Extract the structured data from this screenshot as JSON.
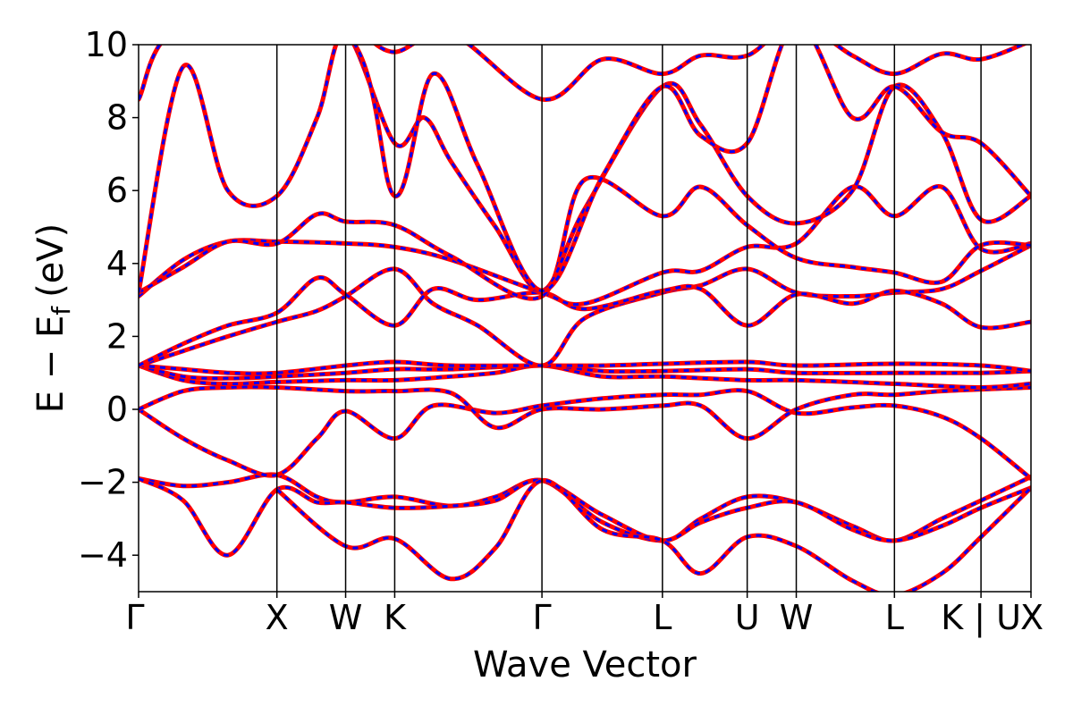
{
  "chart_data": {
    "type": "line",
    "title": "",
    "xlabel": "Wave Vector",
    "ylabel": "E − E",
    "ylabel_sub": "f",
    "ylabel_unit": "(eV)",
    "ylim": [
      -5,
      10
    ],
    "xlim": [
      0,
      1
    ],
    "yticks": [
      -4,
      -2,
      0,
      2,
      4,
      6,
      8,
      10
    ],
    "ytick_labels": [
      "−4",
      "−2",
      "0",
      "2",
      "4",
      "6",
      "8",
      "10"
    ],
    "kpoints": [
      {
        "label": "Γ",
        "x": 0.0
      },
      {
        "label": "X",
        "x": 0.155
      },
      {
        "label": "W",
        "x": 0.232
      },
      {
        "label": "K",
        "x": 0.287
      },
      {
        "label": "Γ",
        "x": 0.452
      },
      {
        "label": "L",
        "x": 0.587
      },
      {
        "label": "U",
        "x": 0.682
      },
      {
        "label": "W",
        "x": 0.737
      },
      {
        "label": "L",
        "x": 0.847
      },
      {
        "label": "K | U",
        "x": 0.944
      },
      {
        "label": "X",
        "x": 1.0
      }
    ],
    "series_colors": {
      "primary": "#ff0000",
      "secondary": "#0000ff"
    },
    "bands": [
      [
        [
          0,
          -1.9
        ],
        [
          0.05,
          -2.1
        ],
        [
          0.1,
          -2.0
        ],
        [
          0.155,
          -1.8
        ],
        [
          0.2,
          -2.4
        ],
        [
          0.232,
          -2.55
        ],
        [
          0.287,
          -2.4
        ],
        [
          0.35,
          -2.65
        ],
        [
          0.4,
          -2.4
        ],
        [
          0.452,
          -1.95
        ],
        [
          0.52,
          -2.9
        ],
        [
          0.587,
          -3.6
        ],
        [
          0.63,
          -3.0
        ],
        [
          0.682,
          -2.4
        ],
        [
          0.737,
          -2.55
        ],
        [
          0.8,
          -3.2
        ],
        [
          0.847,
          -3.6
        ],
        [
          0.9,
          -3.0
        ],
        [
          0.944,
          -2.5
        ],
        [
          1.0,
          -1.85
        ]
      ],
      [
        [
          0,
          -1.9
        ],
        [
          0.05,
          -2.5
        ],
        [
          0.1,
          -4.0
        ],
        [
          0.155,
          -2.2
        ],
        [
          0.2,
          -2.55
        ],
        [
          0.232,
          -2.55
        ],
        [
          0.287,
          -2.7
        ],
        [
          0.35,
          -2.65
        ],
        [
          0.4,
          -2.5
        ],
        [
          0.452,
          -1.95
        ],
        [
          0.52,
          -3.1
        ],
        [
          0.587,
          -3.6
        ],
        [
          0.63,
          -3.1
        ],
        [
          0.682,
          -2.7
        ],
        [
          0.737,
          -2.55
        ],
        [
          0.8,
          -3.3
        ],
        [
          0.847,
          -3.6
        ],
        [
          0.9,
          -3.2
        ],
        [
          0.944,
          -2.7
        ],
        [
          1.0,
          -2.15
        ]
      ],
      [
        [
          0.155,
          -2.2
        ],
        [
          0.232,
          -3.75
        ],
        [
          0.287,
          -3.55
        ],
        [
          0.35,
          -4.65
        ],
        [
          0.4,
          -3.8
        ],
        [
          0.452,
          -1.95
        ],
        [
          0.52,
          -3.3
        ],
        [
          0.587,
          -3.6
        ],
        [
          0.63,
          -4.5
        ],
        [
          0.682,
          -3.5
        ],
        [
          0.737,
          -3.75
        ],
        [
          0.8,
          -4.7
        ],
        [
          0.847,
          -5.1
        ],
        [
          0.9,
          -4.5
        ],
        [
          0.944,
          -3.5
        ],
        [
          1.0,
          -2.15
        ]
      ],
      [
        [
          0,
          0.0
        ],
        [
          0.05,
          -0.8
        ],
        [
          0.1,
          -1.4
        ],
        [
          0.155,
          -1.8
        ],
        [
          0.2,
          -0.8
        ],
        [
          0.232,
          -0.05
        ],
        [
          0.287,
          -0.8
        ],
        [
          0.33,
          0.1
        ],
        [
          0.4,
          -0.1
        ],
        [
          0.452,
          0.1
        ],
        [
          0.52,
          0.3
        ],
        [
          0.587,
          0.4
        ],
        [
          0.63,
          0.4
        ],
        [
          0.682,
          0.5
        ],
        [
          0.737,
          -0.1
        ],
        [
          0.8,
          0.05
        ],
        [
          0.847,
          0.1
        ],
        [
          0.9,
          -0.2
        ],
        [
          0.944,
          -0.8
        ],
        [
          1.0,
          -1.9
        ]
      ],
      [
        [
          0,
          0.0
        ],
        [
          0.05,
          0.5
        ],
        [
          0.1,
          0.6
        ],
        [
          0.155,
          0.6
        ],
        [
          0.232,
          0.5
        ],
        [
          0.287,
          0.5
        ],
        [
          0.35,
          0.45
        ],
        [
          0.4,
          -0.5
        ],
        [
          0.452,
          0.0
        ],
        [
          0.52,
          0.0
        ],
        [
          0.587,
          0.1
        ],
        [
          0.63,
          0.1
        ],
        [
          0.682,
          -0.8
        ],
        [
          0.737,
          0.0
        ],
        [
          0.8,
          0.4
        ],
        [
          0.847,
          0.4
        ],
        [
          0.9,
          0.5
        ],
        [
          1.0,
          0.6
        ]
      ],
      [
        [
          0,
          1.2
        ],
        [
          0.05,
          0.8
        ],
        [
          0.1,
          0.7
        ],
        [
          0.155,
          0.75
        ],
        [
          0.232,
          0.8
        ],
        [
          0.287,
          0.8
        ],
        [
          0.35,
          0.9
        ],
        [
          0.4,
          1.0
        ],
        [
          0.452,
          1.2
        ],
        [
          0.52,
          0.9
        ],
        [
          0.587,
          0.9
        ],
        [
          0.682,
          0.8
        ],
        [
          0.737,
          0.8
        ],
        [
          0.847,
          0.7
        ],
        [
          0.944,
          0.6
        ],
        [
          1.0,
          0.7
        ]
      ],
      [
        [
          0,
          1.2
        ],
        [
          0.05,
          0.9
        ],
        [
          0.1,
          0.85
        ],
        [
          0.155,
          0.9
        ],
        [
          0.232,
          1.0
        ],
        [
          0.287,
          1.1
        ],
        [
          0.35,
          1.1
        ],
        [
          0.452,
          1.2
        ],
        [
          0.52,
          1.05
        ],
        [
          0.587,
          1.05
        ],
        [
          0.682,
          1.1
        ],
        [
          0.737,
          1.0
        ],
        [
          0.847,
          1.0
        ],
        [
          0.944,
          1.0
        ],
        [
          1.0,
          1.05
        ]
      ],
      [
        [
          0,
          1.2
        ],
        [
          0.05,
          1.1
        ],
        [
          0.1,
          1.0
        ],
        [
          0.155,
          1.0
        ],
        [
          0.232,
          1.2
        ],
        [
          0.287,
          1.3
        ],
        [
          0.35,
          1.2
        ],
        [
          0.452,
          1.2
        ],
        [
          0.52,
          1.2
        ],
        [
          0.587,
          1.25
        ],
        [
          0.682,
          1.3
        ],
        [
          0.737,
          1.2
        ],
        [
          0.847,
          1.25
        ],
        [
          0.944,
          1.2
        ],
        [
          1.0,
          1.05
        ]
      ],
      [
        [
          0,
          1.2
        ],
        [
          0.05,
          1.6
        ],
        [
          0.1,
          2.0
        ],
        [
          0.155,
          2.4
        ],
        [
          0.2,
          2.7
        ],
        [
          0.232,
          3.1
        ],
        [
          0.287,
          3.85
        ],
        [
          0.33,
          2.9
        ],
        [
          0.38,
          2.3
        ],
        [
          0.452,
          1.2
        ],
        [
          0.5,
          2.5
        ],
        [
          0.587,
          3.2
        ],
        [
          0.63,
          3.4
        ],
        [
          0.682,
          3.85
        ],
        [
          0.737,
          3.2
        ],
        [
          0.8,
          3.1
        ],
        [
          0.847,
          3.2
        ],
        [
          0.9,
          3.3
        ],
        [
          0.944,
          3.8
        ],
        [
          1.0,
          4.5
        ]
      ],
      [
        [
          0,
          1.2
        ],
        [
          0.05,
          1.8
        ],
        [
          0.1,
          2.3
        ],
        [
          0.155,
          2.65
        ],
        [
          0.2,
          3.6
        ],
        [
          0.232,
          3.15
        ],
        [
          0.287,
          2.3
        ],
        [
          0.33,
          3.3
        ],
        [
          0.38,
          3.0
        ],
        [
          0.452,
          3.2
        ],
        [
          0.5,
          2.75
        ],
        [
          0.587,
          3.25
        ],
        [
          0.63,
          3.3
        ],
        [
          0.682,
          2.3
        ],
        [
          0.737,
          3.15
        ],
        [
          0.8,
          2.9
        ],
        [
          0.847,
          3.25
        ],
        [
          0.9,
          2.9
        ],
        [
          0.944,
          2.25
        ],
        [
          1.0,
          2.4
        ]
      ],
      [
        [
          0,
          3.1
        ],
        [
          0.05,
          4.1
        ],
        [
          0.1,
          4.6
        ],
        [
          0.155,
          4.6
        ],
        [
          0.232,
          4.55
        ],
        [
          0.287,
          4.45
        ],
        [
          0.35,
          4.1
        ],
        [
          0.452,
          3.2
        ],
        [
          0.5,
          2.9
        ],
        [
          0.587,
          3.75
        ],
        [
          0.63,
          3.8
        ],
        [
          0.682,
          4.45
        ],
        [
          0.737,
          4.55
        ],
        [
          0.8,
          6.1
        ],
        [
          0.847,
          5.3
        ],
        [
          0.9,
          6.1
        ],
        [
          0.944,
          4.4
        ],
        [
          1.0,
          4.55
        ]
      ],
      [
        [
          0,
          3.2
        ],
        [
          0.05,
          3.9
        ],
        [
          0.1,
          4.6
        ],
        [
          0.155,
          4.55
        ],
        [
          0.2,
          5.35
        ],
        [
          0.232,
          5.15
        ],
        [
          0.287,
          5.05
        ],
        [
          0.35,
          4.2
        ],
        [
          0.452,
          3.1
        ],
        [
          0.5,
          6.3
        ],
        [
          0.587,
          5.3
        ],
        [
          0.63,
          6.1
        ],
        [
          0.682,
          5.05
        ],
        [
          0.737,
          4.15
        ],
        [
          0.8,
          3.9
        ],
        [
          0.847,
          3.75
        ],
        [
          0.9,
          3.5
        ],
        [
          0.944,
          4.5
        ],
        [
          1.0,
          4.5
        ]
      ],
      [
        [
          0,
          3.2
        ],
        [
          0.05,
          9.4
        ],
        [
          0.1,
          6.0
        ],
        [
          0.155,
          5.85
        ],
        [
          0.2,
          8.0
        ],
        [
          0.232,
          10.3
        ],
        [
          0.287,
          7.3
        ],
        [
          0.32,
          8.0
        ],
        [
          0.35,
          6.8
        ],
        [
          0.4,
          5.0
        ],
        [
          0.452,
          3.25
        ],
        [
          0.5,
          5.5
        ],
        [
          0.587,
          8.85
        ],
        [
          0.63,
          7.8
        ],
        [
          0.682,
          5.85
        ],
        [
          0.737,
          5.1
        ],
        [
          0.8,
          6.0
        ],
        [
          0.847,
          8.85
        ],
        [
          0.9,
          7.6
        ],
        [
          0.944,
          5.2
        ],
        [
          1.0,
          5.85
        ]
      ],
      [
        [
          0,
          8.5
        ],
        [
          0.05,
          10.5
        ],
        [
          0.232,
          10.3
        ],
        [
          0.287,
          5.85
        ],
        [
          0.33,
          9.2
        ],
        [
          0.38,
          6.7
        ],
        [
          0.452,
          3.25
        ],
        [
          0.52,
          6.4
        ],
        [
          0.587,
          8.85
        ],
        [
          0.63,
          7.5
        ],
        [
          0.682,
          7.3
        ],
        [
          0.737,
          10.6
        ],
        [
          0.8,
          8.0
        ],
        [
          0.847,
          8.85
        ],
        [
          0.9,
          7.6
        ],
        [
          0.944,
          7.3
        ],
        [
          1.0,
          5.85
        ]
      ],
      [
        [
          0.252,
          10.3
        ],
        [
          0.287,
          9.8
        ],
        [
          0.35,
          10.3
        ],
        [
          0.452,
          8.5
        ],
        [
          0.52,
          9.6
        ],
        [
          0.587,
          9.2
        ],
        [
          0.63,
          9.7
        ],
        [
          0.682,
          9.7
        ],
        [
          0.737,
          10.6
        ],
        [
          0.8,
          9.7
        ],
        [
          0.847,
          9.2
        ],
        [
          0.9,
          9.75
        ],
        [
          0.944,
          9.6
        ],
        [
          1.0,
          10.1
        ]
      ]
    ]
  }
}
